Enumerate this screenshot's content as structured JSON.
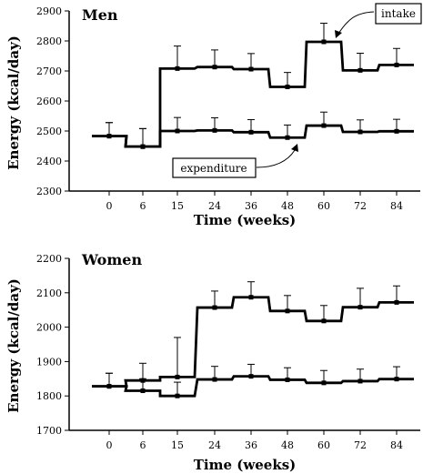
{
  "chart_data": [
    {
      "type": "line",
      "title": "Men",
      "xlabel": "Time (weeks)",
      "ylabel": "Energy (kcal/day)",
      "ylim": [
        2300,
        2900
      ],
      "yticks": [
        2300,
        2400,
        2500,
        2600,
        2700,
        2800,
        2900
      ],
      "categories": [
        "0",
        "6",
        "15",
        "24",
        "36",
        "48",
        "60",
        "72",
        "84"
      ],
      "series": [
        {
          "name": "intake",
          "values": [
            2483,
            2448,
            2708,
            2713,
            2706,
            2647,
            2797,
            2702,
            2720
          ],
          "errors": [
            45,
            60,
            75,
            57,
            52,
            48,
            62,
            57,
            55
          ]
        },
        {
          "name": "expenditure",
          "values": [
            2483,
            2448,
            2500,
            2502,
            2496,
            2478,
            2518,
            2497,
            2499
          ],
          "errors": [
            45,
            60,
            45,
            42,
            42,
            42,
            45,
            40,
            40
          ]
        }
      ],
      "annotations": [
        "intake",
        "expenditure"
      ]
    },
    {
      "type": "line",
      "title": "Women",
      "xlabel": "Time (weeks)",
      "ylabel": "Energy (kcal/day)",
      "ylim": [
        1700,
        2200
      ],
      "yticks": [
        1700,
        1800,
        1900,
        2000,
        2100,
        2200
      ],
      "categories": [
        "0",
        "6",
        "15",
        "24",
        "36",
        "48",
        "60",
        "72",
        "84"
      ],
      "series": [
        {
          "name": "intake",
          "values": [
            1828,
            1845,
            1855,
            2057,
            2087,
            2047,
            2018,
            2058,
            2072
          ],
          "errors": [
            38,
            50,
            115,
            48,
            45,
            45,
            45,
            55,
            48
          ]
        },
        {
          "name": "expenditure",
          "values": [
            1828,
            1815,
            1800,
            1848,
            1857,
            1847,
            1838,
            1843,
            1849
          ],
          "errors": [
            38,
            35,
            40,
            38,
            35,
            35,
            36,
            35,
            36
          ]
        }
      ]
    }
  ]
}
